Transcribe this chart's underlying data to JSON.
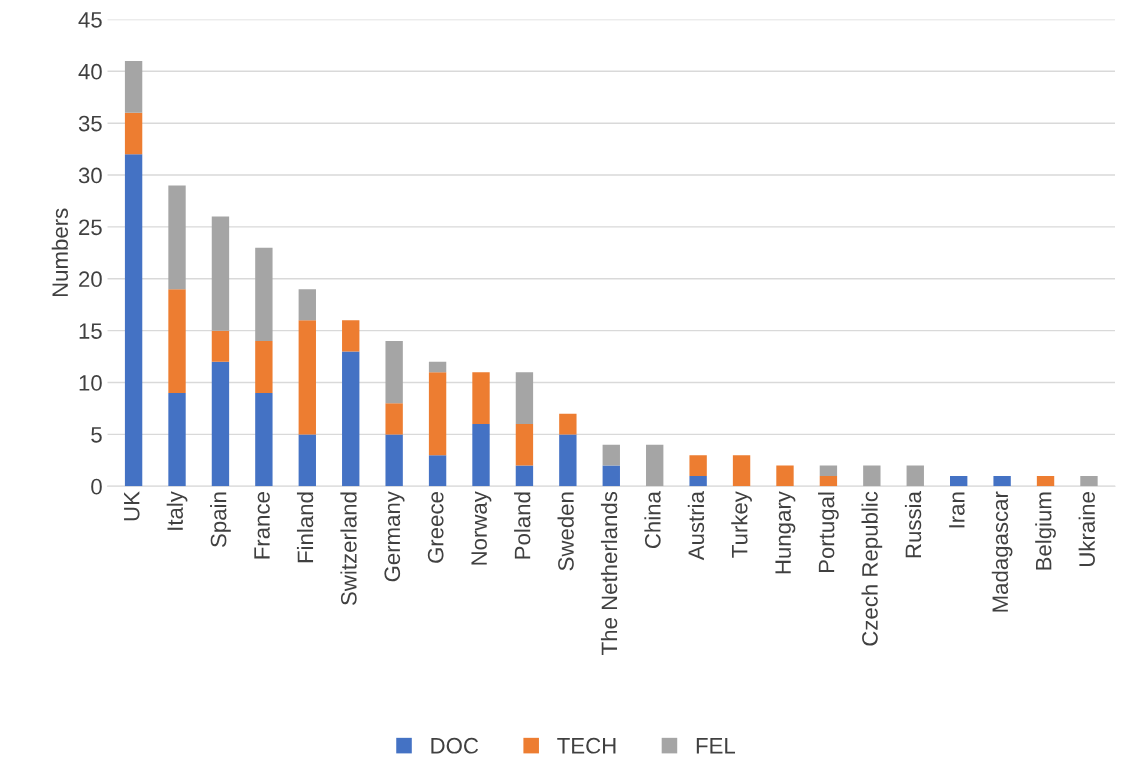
{
  "chart_data": {
    "type": "bar",
    "stacked": true,
    "ylabel": "Numbers",
    "categories": [
      "UK",
      "Italy",
      "Spain",
      "France",
      "Finland",
      "Switzerland",
      "Germany",
      "Greece",
      "Norway",
      "Poland",
      "Sweden",
      "The Netherlands",
      "China",
      "Austria",
      "Turkey",
      "Hungary",
      "Portugal",
      "Czech Republic",
      "Russia",
      "Iran",
      "Madagascar",
      "Belgium",
      "Ukraine"
    ],
    "series": [
      {
        "name": "DOC",
        "color": "#4472c4",
        "values": [
          32,
          9,
          12,
          9,
          5,
          13,
          5,
          3,
          6,
          2,
          5,
          2,
          0,
          1,
          0,
          0,
          0,
          0,
          0,
          1,
          1,
          0,
          0
        ]
      },
      {
        "name": "TECH",
        "color": "#ed7d31",
        "values": [
          4,
          10,
          3,
          5,
          11,
          3,
          3,
          8,
          5,
          4,
          2,
          0,
          0,
          2,
          3,
          2,
          1,
          0,
          0,
          0,
          0,
          1,
          0
        ]
      },
      {
        "name": "FEL",
        "color": "#a5a5a5",
        "values": [
          5,
          10,
          11,
          9,
          3,
          0,
          6,
          1,
          0,
          5,
          0,
          2,
          4,
          0,
          0,
          0,
          1,
          2,
          2,
          0,
          0,
          0,
          1
        ]
      }
    ],
    "ylim": [
      0,
      45
    ],
    "yticks": [
      0,
      5,
      10,
      15,
      20,
      25,
      30,
      35,
      40,
      45
    ],
    "grid": "y",
    "legend": "bottom"
  }
}
